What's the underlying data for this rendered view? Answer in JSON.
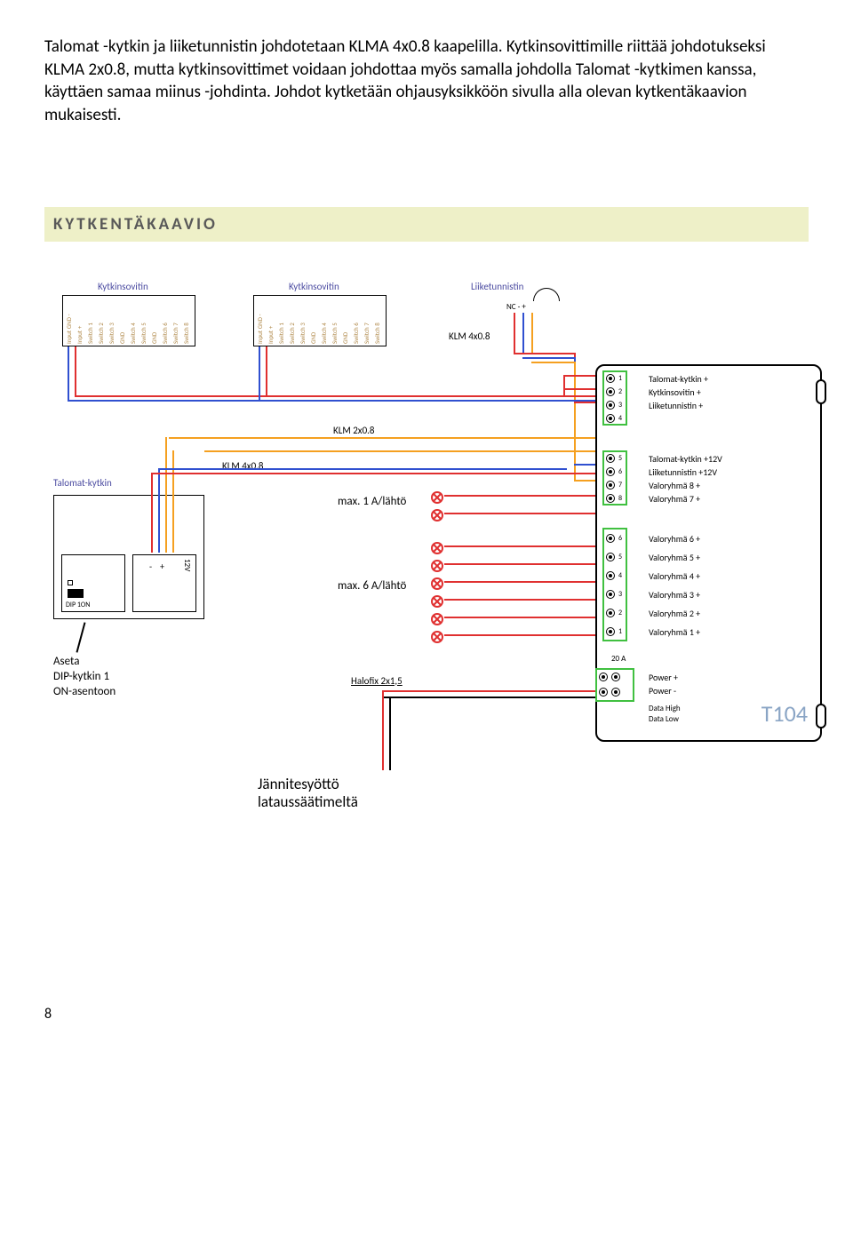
{
  "paragraph": "Talomat -kytkin ja liiketunnistin johdotetaan KLMA 4x0.8 kaapelilla. Kytkinsovittimille riittää johdotukseksi KLMA 2x0.8, mutta kytkinsovittimet voidaan johdottaa myös samalla johdolla Talomat -kytkimen kanssa, käyttäen samaa miinus -johdinta. Johdot kytketään ohjausyksikköön sivulla alla olevan kytkentäkaavion mukaisesti.",
  "heading": "KYTKENTÄKAAVIO",
  "diagram": {
    "adapter_label": "Kytkinsovitin",
    "detector_label": "Liiketunnistin",
    "detector_pins": "NC   -   +",
    "switch_pins": [
      "Input GND -",
      "Input +",
      "Switch 1",
      "Switch 2",
      "Switch 3",
      "GND",
      "Switch 4",
      "Switch 5",
      "GND",
      "Switch 6",
      "Switch 7",
      "Switch 8"
    ],
    "cable1": "KLM 4x0.8",
    "cable2": "KLM 2x0.8",
    "cable3": "KLM 4x0.8",
    "talomat_switch": "Talomat-kytkin",
    "max1": "max. 1 A/lähtö",
    "max6": "max. 6 A/lähtö",
    "dip_note1": "Aseta",
    "dip_note2": "DIP-kytkin 1",
    "dip_note3": "ON-asentoon",
    "dip_label": "DIP  1ON",
    "twelve_v": "12V",
    "halofix": "Halofix 2x1,5",
    "power_supply1": "Jännitesyöttö",
    "power_supply2": "lataussäätimeltä",
    "controller_name": "T104",
    "fuse": "20 A",
    "terminals_top": [
      "Talomat-kytkin +",
      "Kytkinsovitin +",
      "Liiketunnistin +"
    ],
    "terminals_mid": [
      "Talomat-kytkin +12V",
      "Liiketunnistin +12V",
      "Valoryhmä 8 +",
      "Valoryhmä 7 +"
    ],
    "terminals_valo": [
      "Valoryhmä 6 +",
      "Valoryhmä 5 +",
      "Valoryhmä 4 +",
      "Valoryhmä 3 +",
      "Valoryhmä 2 +",
      "Valoryhmä 1 +"
    ],
    "terminals_power": [
      "Power +",
      "Power -"
    ],
    "terminals_data": [
      "Data High",
      "Data Low"
    ],
    "nums_top": [
      "1",
      "2",
      "3",
      "4"
    ],
    "nums_mid": [
      "5",
      "6",
      "7",
      "8"
    ],
    "nums_valo": [
      "6",
      "5",
      "4",
      "3",
      "2",
      "1"
    ]
  },
  "page": "8",
  "colors": {
    "red": "#e03030",
    "blue": "#3050d0",
    "orange": "#f5a020",
    "green": "#40c040",
    "heading_bg": "#eef0c8"
  }
}
